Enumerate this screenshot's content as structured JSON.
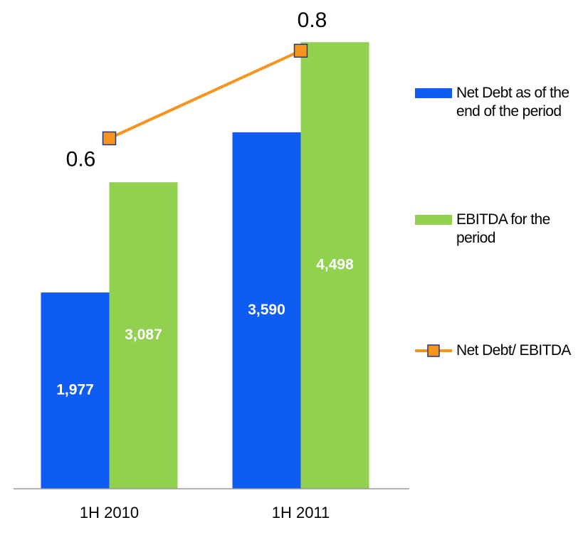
{
  "chart_data": {
    "type": "bar",
    "categories": [
      "1H 2010",
      "1H 2011"
    ],
    "series": [
      {
        "name": "Net Debt as of the end of the period",
        "color": "#0f5cf2",
        "values": [
          1977,
          3590
        ],
        "value_labels": [
          "1,977",
          "3,590"
        ]
      },
      {
        "name": "EBITDA for the period",
        "color": "#92d050",
        "values": [
          3087,
          4498
        ],
        "value_labels": [
          "3,087",
          "4,498"
        ]
      },
      {
        "name": "Net Debt/ EBITDA",
        "type": "line",
        "axis": "y2",
        "color": "#f7941d",
        "marker_edge": "#1f3a7a",
        "values": [
          0.6,
          0.8
        ]
      }
    ],
    "ylim": [
      0,
      4500
    ],
    "y2lim": [
      -0.2,
      0.82
    ],
    "legend": "right"
  }
}
